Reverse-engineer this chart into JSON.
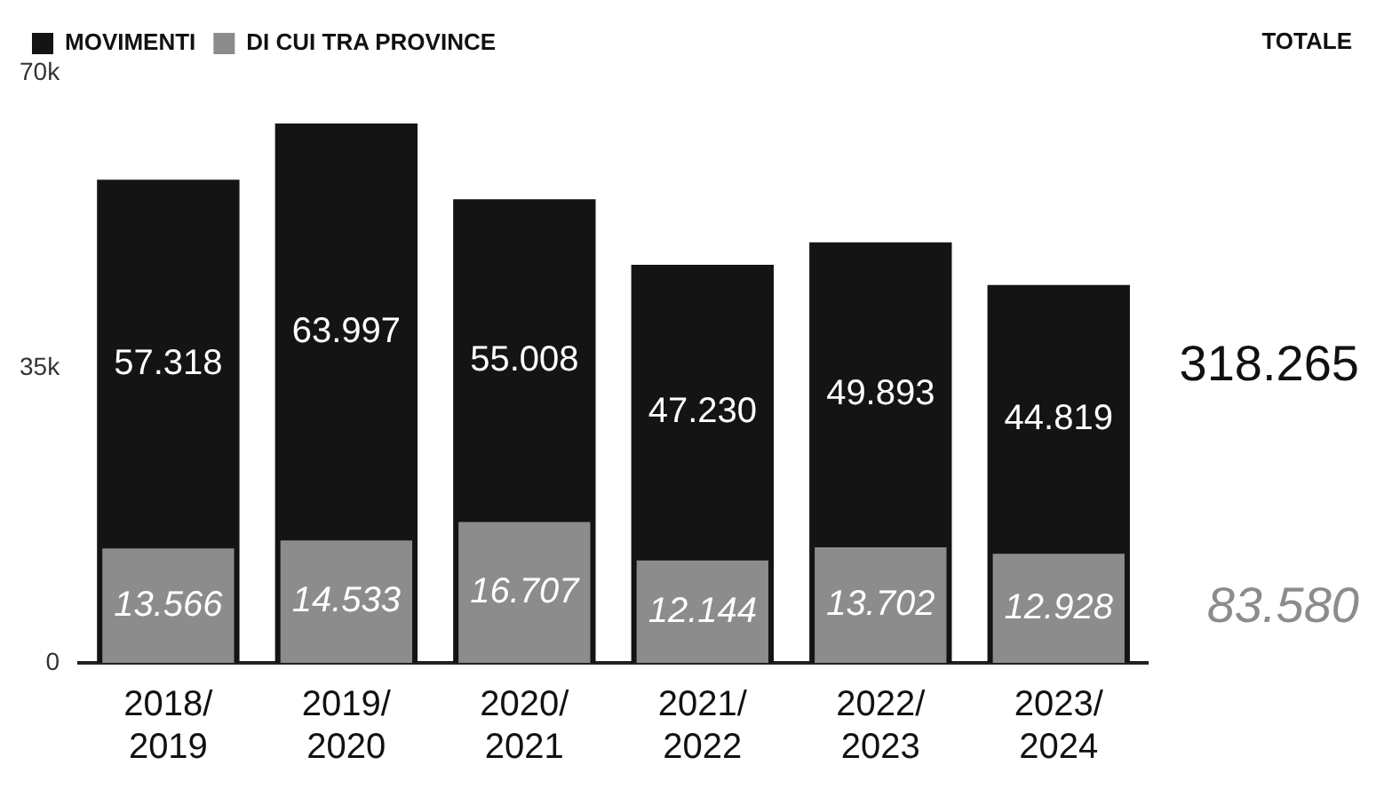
{
  "chart_data": {
    "type": "bar",
    "categories": [
      "2018/2019",
      "2019/2020",
      "2020/2021",
      "2021/2022",
      "2022/2023",
      "2023/2024"
    ],
    "series": [
      {
        "name": "MOVIMENTI",
        "color": "#141414",
        "values": [
          57318,
          63997,
          55008,
          47230,
          49893,
          44819
        ],
        "value_labels": [
          "57.318",
          "63.997",
          "55.008",
          "47.230",
          "49.893",
          "44.819"
        ]
      },
      {
        "name": "DI CUI TRA PROVINCE",
        "color": "#8c8c8c",
        "values": [
          13566,
          14533,
          16707,
          12144,
          13702,
          12928
        ],
        "value_labels": [
          "13.566",
          "14.533",
          "16.707",
          "12.144",
          "13.702",
          "12.928"
        ]
      }
    ],
    "ylim": [
      0,
      70000
    ],
    "yticks": [
      0,
      {
        "value": 35000,
        "label": "35k"
      },
      {
        "value": 70000,
        "label": "70k"
      }
    ],
    "grid": false,
    "legend": "top left",
    "annotations": [
      "TOTALE",
      "318.265",
      "83.580"
    ]
  }
}
